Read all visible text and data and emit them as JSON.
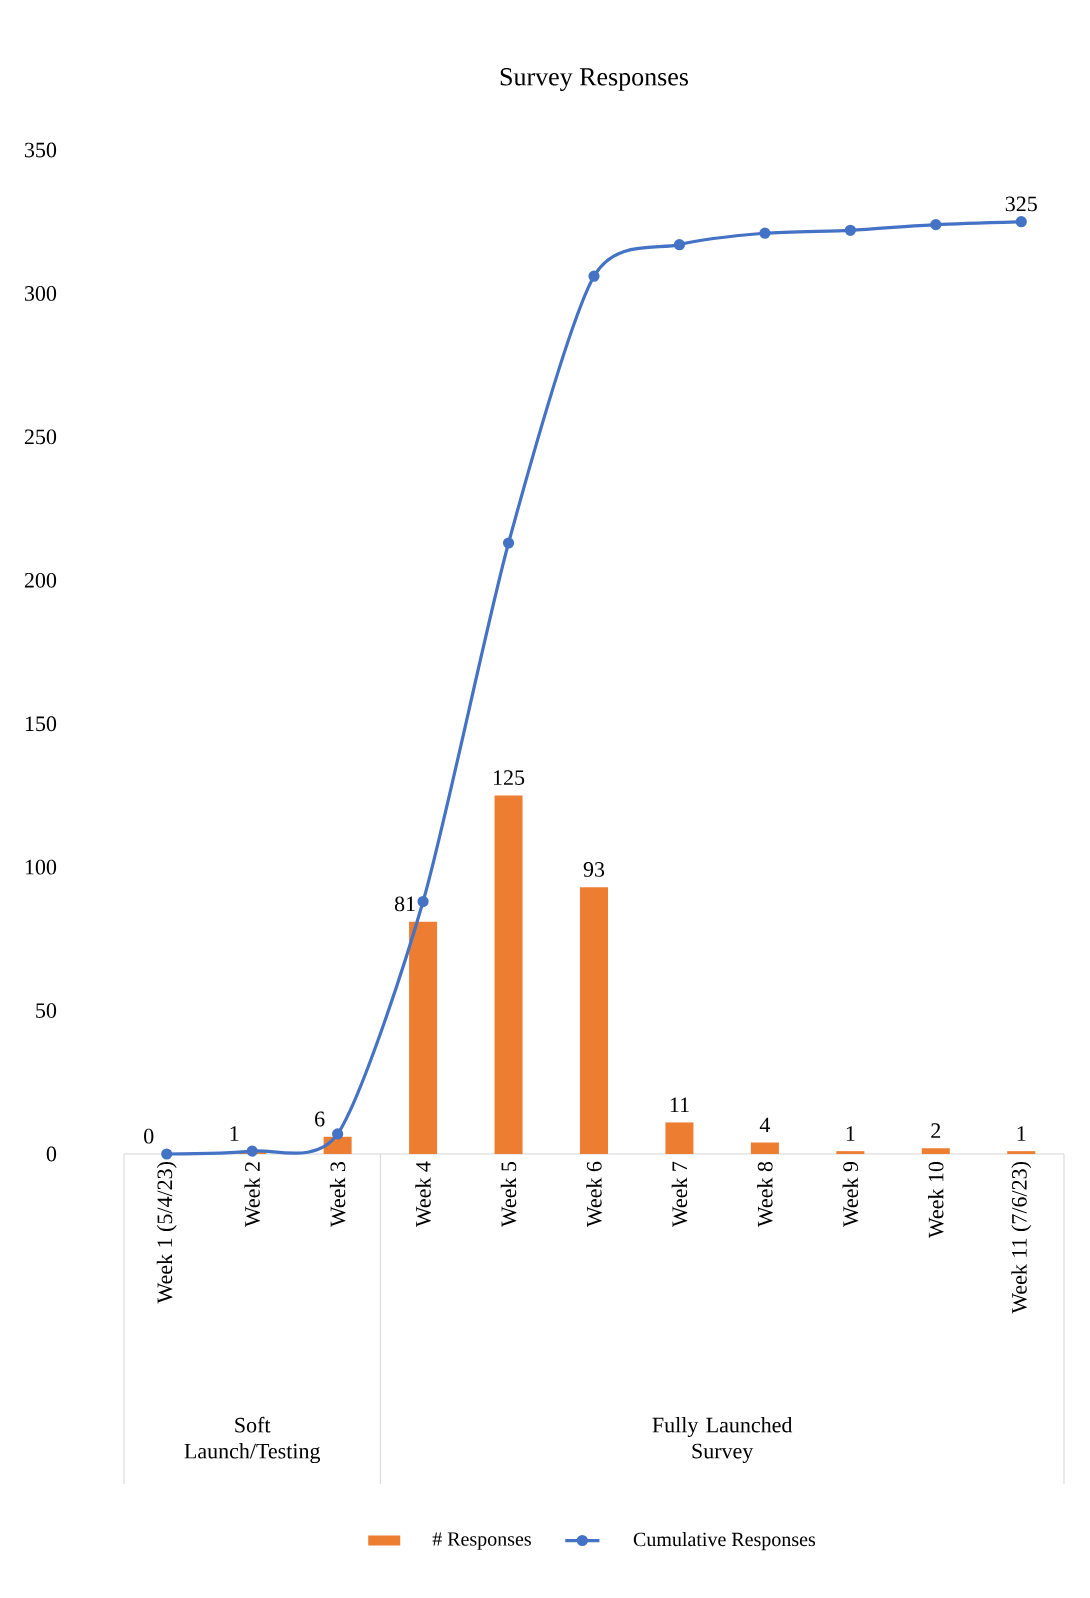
{
  "chart_data": {
    "type": "bar",
    "title": "Survey Responses",
    "categories": [
      "Week 1 (5/4/23)",
      "Week 2",
      "Week 3",
      "Week 4",
      "Week 5",
      "Week 6",
      "Week 7",
      "Week 8",
      "Week 9",
      "Week 10",
      "Week 11 (7/6/23)"
    ],
    "series": [
      {
        "name": "# Responses",
        "color": "#ed7d31",
        "values": [
          0,
          1,
          6,
          81,
          125,
          93,
          11,
          4,
          1,
          2,
          1
        ],
        "value_labels": [
          "0",
          "1",
          "6",
          "81",
          "125",
          "93",
          "11",
          "4",
          "1",
          "2",
          "1"
        ]
      },
      {
        "name": "Cumulative Responses",
        "type": "line",
        "color": "#4472c4",
        "values": [
          0,
          1,
          7,
          88,
          213,
          306,
          317,
          321,
          322,
          324,
          325
        ],
        "value_labels": [
          null,
          null,
          null,
          null,
          null,
          null,
          null,
          null,
          null,
          null,
          "325"
        ]
      }
    ],
    "ylim": [
      0,
      350
    ],
    "yticks": [
      0,
      50,
      100,
      150,
      200,
      250,
      300,
      350
    ],
    "legend": "bottom",
    "marker": "circle",
    "annotations": [
      "Soft Launch/Testing",
      "Fully Launched Survey"
    ]
  }
}
